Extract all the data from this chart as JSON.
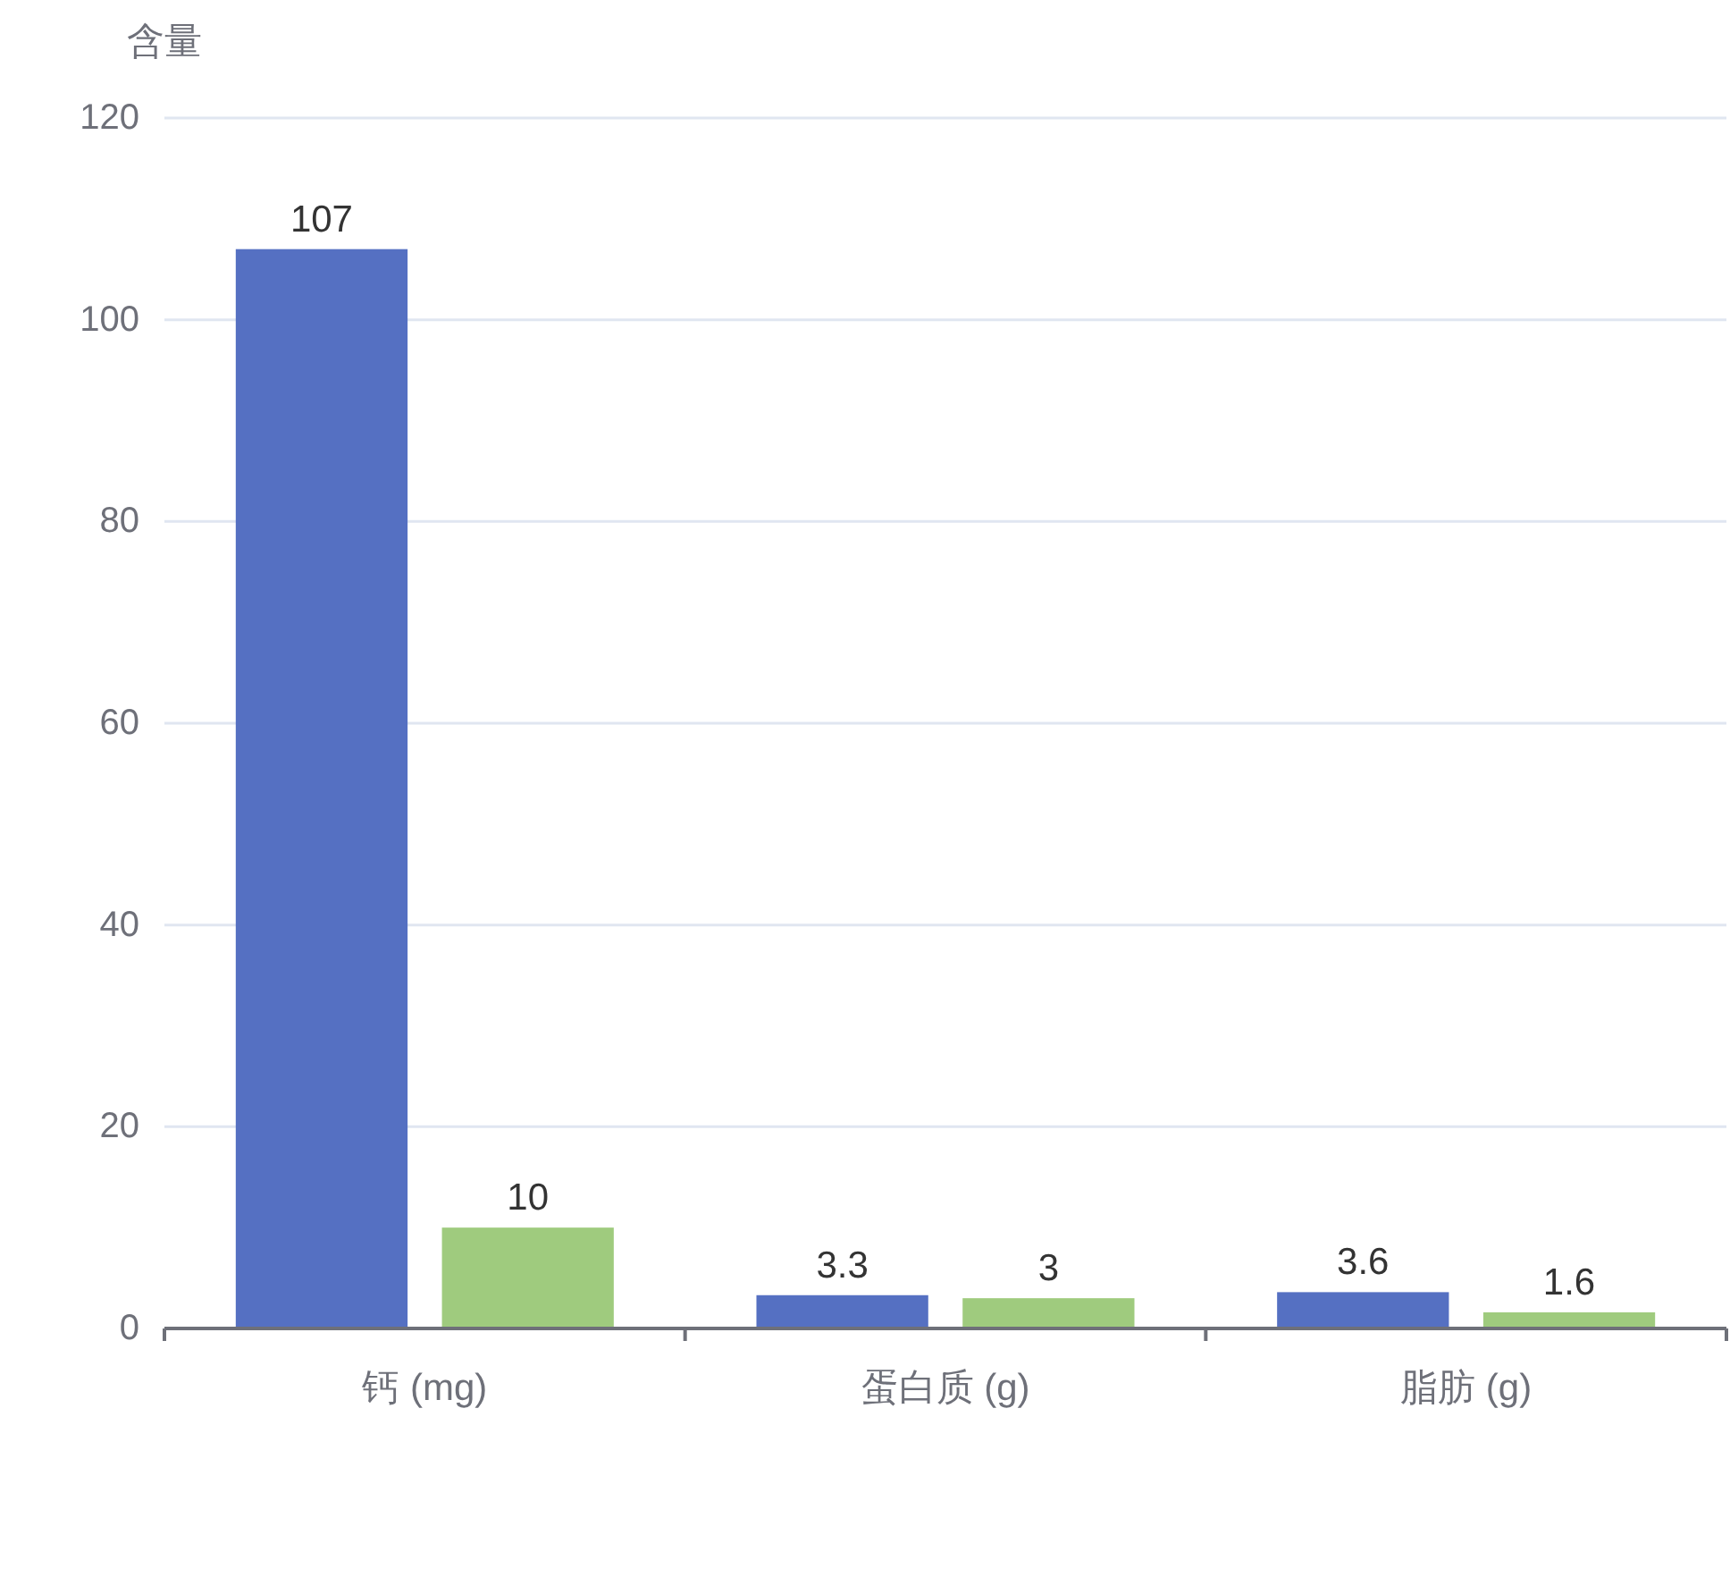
{
  "chart_data": {
    "type": "bar",
    "ylabel": "含量",
    "categories": [
      "钙 (mg)",
      "蛋白质 (g)",
      "脂肪 (g)"
    ],
    "series": [
      {
        "color": "#5570c2",
        "values": [
          107,
          3.3,
          3.6
        ]
      },
      {
        "color": "#9fcb7e",
        "values": [
          10,
          3,
          1.6
        ]
      }
    ],
    "ylim": [
      0,
      120
    ],
    "yticks": [
      0,
      20,
      40,
      60,
      80,
      100,
      120
    ],
    "grid": "y",
    "data_labels": true
  }
}
